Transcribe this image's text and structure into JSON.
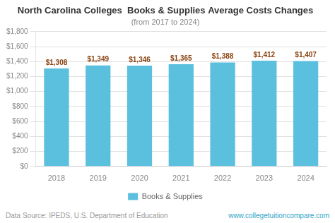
{
  "chart_data": {
    "type": "bar",
    "title": "North Carolina Colleges  Books & Supplies Average Costs Changes",
    "subtitle": "(from 2017 to 2024)",
    "categories": [
      "2018",
      "2019",
      "2020",
      "2021",
      "2022",
      "2023",
      "2024"
    ],
    "series": [
      {
        "name": "Books & Supplies",
        "color": "#5bc0de",
        "values": [
          1308,
          1349,
          1346,
          1365,
          1388,
          1412,
          1407
        ],
        "value_labels": [
          "$1,308",
          "$1,349",
          "$1,346",
          "$1,365",
          "$1,388",
          "$1,412",
          "$1,407"
        ]
      }
    ],
    "ylim": [
      0,
      1800
    ],
    "yticks": [
      {
        "value": 0,
        "label": "$0"
      },
      {
        "value": 200,
        "label": "$200"
      },
      {
        "value": 400,
        "label": "$400"
      },
      {
        "value": 600,
        "label": "$600"
      },
      {
        "value": 800,
        "label": "$800"
      },
      {
        "value": 1000,
        "label": "$1,000"
      },
      {
        "value": 1200,
        "label": "$1,200"
      },
      {
        "value": 1400,
        "label": "$1,400"
      },
      {
        "value": 1600,
        "label": "$1,600"
      },
      {
        "value": 1800,
        "label": "$1,800"
      }
    ],
    "grid": true,
    "legend": "bottom",
    "data_labels": true,
    "annotations": [
      "Data Source: IPEDS, U.S. Department of Education",
      "www.collegetuitioncompare.com"
    ]
  }
}
